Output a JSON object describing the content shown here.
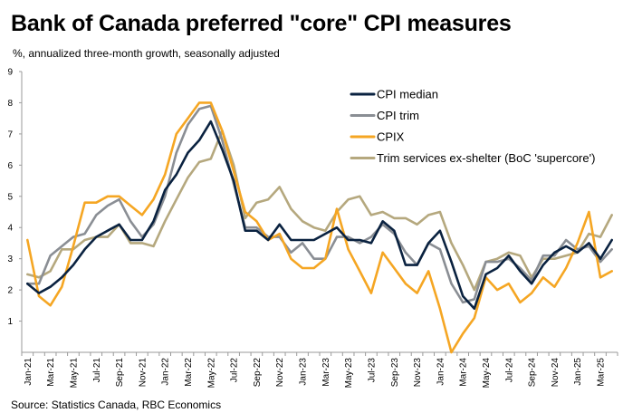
{
  "header": {
    "title": "Bank of Canada preferred \"core\" CPI measures",
    "subtitle": "%, annualized three-month growth, seasonally adjusted"
  },
  "footer": {
    "source": "Source: Statistics Canada, RBC Economics"
  },
  "chart_data": {
    "type": "line",
    "title": "Bank of Canada preferred \"core\" CPI measures",
    "subtitle": "%, annualized three-month growth, seasonally adjusted",
    "xlabel": "",
    "ylabel": "",
    "ylim": [
      0,
      9
    ],
    "yticks": [
      1,
      2,
      3,
      4,
      5,
      6,
      7,
      8,
      9
    ],
    "grid": false,
    "legend_position": "top-right",
    "x": [
      "Jan-21",
      "Feb-21",
      "Mar-21",
      "Apr-21",
      "May-21",
      "Jun-21",
      "Jul-21",
      "Aug-21",
      "Sep-21",
      "Oct-21",
      "Nov-21",
      "Dec-21",
      "Jan-22",
      "Feb-22",
      "Mar-22",
      "Apr-22",
      "May-22",
      "Jun-22",
      "Jul-22",
      "Aug-22",
      "Sep-22",
      "Oct-22",
      "Nov-22",
      "Dec-22",
      "Jan-23",
      "Feb-23",
      "Mar-23",
      "Apr-23",
      "May-23",
      "Jun-23",
      "Jul-23",
      "Aug-23",
      "Sep-23",
      "Oct-23",
      "Nov-23",
      "Dec-23",
      "Jan-24",
      "Feb-24",
      "Mar-24",
      "Apr-24",
      "May-24",
      "Jun-24",
      "Jul-24",
      "Aug-24",
      "Sep-24",
      "Oct-24",
      "Nov-24",
      "Dec-24",
      "Jan-25",
      "Feb-25",
      "Mar-25",
      "Apr-25"
    ],
    "x_tick_labels": [
      "Jan-21",
      "Mar-21",
      "May-21",
      "Jul-21",
      "Sep-21",
      "Nov-21",
      "Jan-22",
      "Mar-22",
      "May-22",
      "Jul-22",
      "Sep-22",
      "Nov-22",
      "Jan-23",
      "Mar-23",
      "May-23",
      "Jul-23",
      "Sep-23",
      "Nov-23",
      "Jan-24",
      "Mar-24",
      "May-24",
      "Jul-24",
      "Sep-24",
      "Nov-24",
      "Jan-25",
      "Mar-25"
    ],
    "series": [
      {
        "name": "CPI median",
        "color": "#0a2240",
        "values": [
          2.2,
          1.9,
          2.1,
          2.4,
          2.8,
          3.3,
          3.7,
          3.9,
          4.1,
          3.6,
          3.6,
          4.2,
          5.2,
          5.7,
          6.4,
          6.8,
          7.4,
          6.5,
          5.5,
          3.9,
          3.9,
          3.6,
          4.1,
          3.6,
          3.6,
          3.6,
          3.8,
          4.0,
          3.6,
          3.6,
          3.5,
          4.2,
          3.9,
          2.8,
          2.8,
          3.5,
          3.9,
          2.9,
          1.8,
          1.4,
          2.5,
          2.7,
          3.1,
          2.6,
          2.2,
          2.8,
          3.2,
          3.4,
          3.2,
          3.5,
          3.0,
          3.6
        ]
      },
      {
        "name": "CPI trim",
        "color": "#8a8e94",
        "values": [
          2.2,
          2.2,
          3.1,
          3.4,
          3.7,
          3.8,
          4.4,
          4.7,
          4.9,
          4.2,
          3.7,
          4.1,
          5.0,
          6.4,
          7.3,
          7.8,
          7.9,
          6.8,
          5.4,
          4.0,
          4.0,
          3.7,
          3.7,
          3.2,
          3.5,
          3.0,
          3.0,
          3.7,
          3.7,
          3.5,
          3.7,
          4.1,
          3.8,
          3.2,
          2.8,
          3.5,
          3.3,
          2.2,
          1.6,
          1.7,
          2.9,
          2.9,
          3.0,
          2.7,
          2.3,
          3.1,
          3.1,
          3.6,
          3.3,
          3.4,
          2.9,
          3.3
        ]
      },
      {
        "name": "CPIX",
        "color": "#f5a623",
        "values": [
          3.6,
          1.8,
          1.5,
          2.1,
          3.4,
          4.8,
          4.8,
          5.0,
          5.0,
          4.7,
          4.4,
          4.9,
          5.7,
          7.0,
          7.5,
          8.0,
          8.0,
          7.1,
          5.8,
          4.5,
          4.2,
          3.6,
          3.8,
          3.0,
          2.7,
          2.7,
          3.0,
          4.6,
          3.3,
          2.6,
          1.9,
          3.2,
          2.7,
          2.2,
          1.9,
          2.6,
          1.4,
          0.0,
          0.6,
          1.1,
          2.4,
          2.0,
          2.2,
          1.6,
          1.9,
          2.4,
          2.1,
          2.7,
          3.5,
          4.5,
          2.4,
          2.6
        ]
      },
      {
        "name": "Trim services ex-shelter (BoC 'supercore')",
        "color": "#b5a87e",
        "values": [
          2.5,
          2.4,
          2.6,
          3.3,
          3.3,
          3.6,
          3.7,
          3.7,
          4.1,
          3.5,
          3.5,
          3.4,
          4.2,
          4.9,
          5.6,
          6.1,
          6.2,
          7.1,
          6.0,
          4.3,
          4.8,
          4.9,
          5.3,
          4.6,
          4.2,
          4.0,
          3.9,
          4.5,
          4.9,
          5.0,
          4.4,
          4.5,
          4.3,
          4.3,
          4.1,
          4.4,
          4.5,
          3.5,
          2.8,
          2.0,
          2.9,
          3.0,
          3.2,
          3.1,
          2.4,
          3.0,
          3.0,
          3.1,
          3.2,
          3.8,
          3.7,
          4.4
        ]
      }
    ]
  }
}
